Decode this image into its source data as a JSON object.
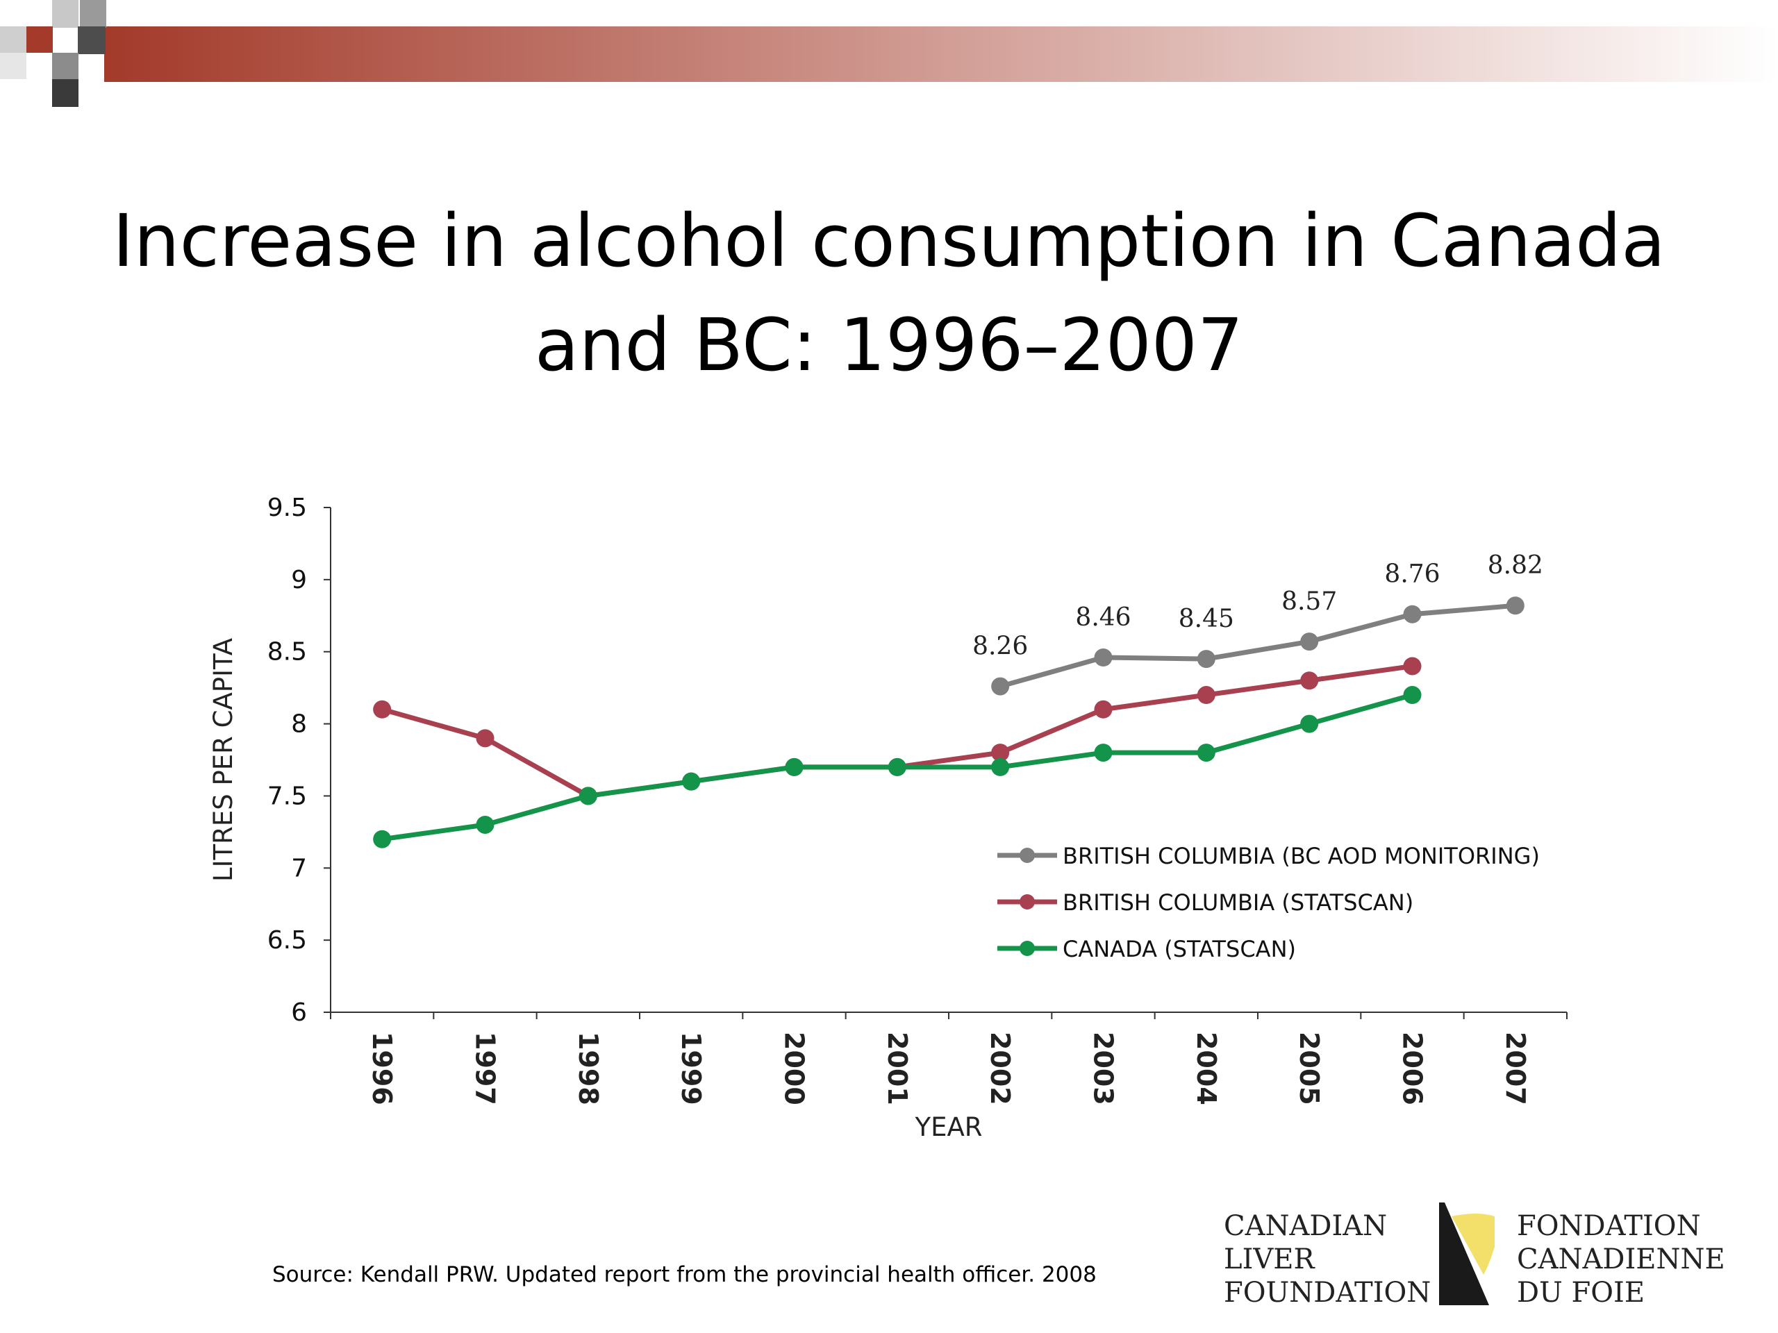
{
  "slide": {
    "title_lines": [
      "Increase in alcohol consumption in Canada",
      "and BC: 1996–2007"
    ],
    "source": "Source: Kendall PRW. Updated report from the provincial health officer. 2008"
  },
  "logo": {
    "english_lines": [
      "CANADIAN",
      "LIVER",
      "FOUNDATION"
    ],
    "french_lines": [
      "FONDATION",
      "CANADIENNE",
      "DU FOIE"
    ],
    "mark_colors": [
      "#1a1a1a",
      "#f2e06b"
    ]
  },
  "theme": {
    "accent": "#a33a2a"
  },
  "chart_data": {
    "type": "line",
    "title": "",
    "xlabel": "YEAR",
    "ylabel": "LITRES PER CAPITA",
    "categories": [
      "1996",
      "1997",
      "1998",
      "1999",
      "2000",
      "2001",
      "2002",
      "2003",
      "2004",
      "2005",
      "2006",
      "2007"
    ],
    "ylim": [
      6,
      9.5
    ],
    "yticks": [
      "6",
      "6.5",
      "7",
      "7.5",
      "8",
      "8.5",
      "9",
      "9.5"
    ],
    "grid": false,
    "legend_position": "lower-right",
    "series": [
      {
        "name": "BRITISH COLUMBIA (BC AOD MONITORING)",
        "color": "#7f7f7f",
        "values": [
          null,
          null,
          null,
          null,
          null,
          null,
          8.26,
          8.46,
          8.45,
          8.57,
          8.76,
          8.82
        ],
        "labels": [
          "",
          "",
          "",
          "",
          "",
          "",
          "8.26",
          "8.46",
          "8.45",
          "8.57",
          "8.76",
          "8.82"
        ]
      },
      {
        "name": "BRITISH COLUMBIA (STATSCAN)",
        "color": "#a8404f",
        "values": [
          8.1,
          7.9,
          7.5,
          7.6,
          7.7,
          7.7,
          7.8,
          8.1,
          8.2,
          8.3,
          8.4,
          null
        ]
      },
      {
        "name": "CANADA (STATSCAN)",
        "color": "#14944a",
        "values": [
          7.2,
          7.3,
          7.5,
          7.6,
          7.7,
          7.7,
          7.7,
          7.8,
          7.8,
          8.0,
          8.2,
          null
        ]
      }
    ]
  }
}
